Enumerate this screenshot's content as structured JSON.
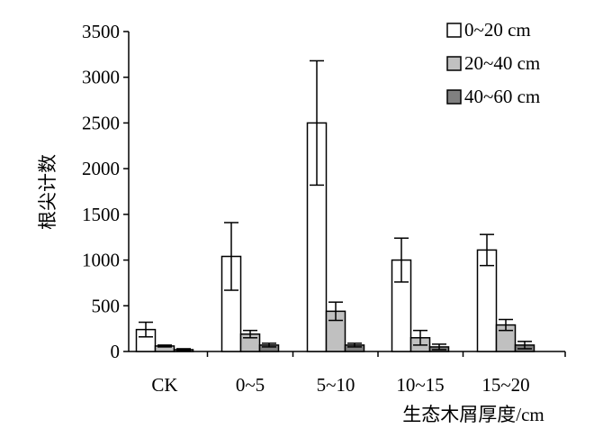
{
  "chart_data": {
    "type": "bar",
    "ylabel": "根尖计数",
    "xlabel": "生态木屑厚度/cm",
    "ylim": [
      0,
      3500
    ],
    "yticks": [
      0,
      500,
      1000,
      1500,
      2000,
      2500,
      3000,
      3500
    ],
    "categories": [
      "CK",
      "0~5",
      "5~10",
      "10~15",
      "15~20"
    ],
    "legend_position": "top-right",
    "grid": false,
    "error_bars": true,
    "series": [
      {
        "name": "0~20 cm",
        "color": "#ffffff",
        "values": [
          240,
          1040,
          2500,
          1000,
          1110
        ],
        "errors": [
          80,
          370,
          680,
          240,
          170
        ]
      },
      {
        "name": "20~40 cm",
        "color": "#c0c0c0",
        "values": [
          60,
          190,
          440,
          150,
          290
        ],
        "errors": [
          10,
          40,
          100,
          80,
          60
        ]
      },
      {
        "name": "40~60 cm",
        "color": "#808080",
        "values": [
          20,
          70,
          70,
          50,
          70
        ],
        "errors": [
          10,
          20,
          20,
          30,
          40
        ]
      }
    ]
  }
}
